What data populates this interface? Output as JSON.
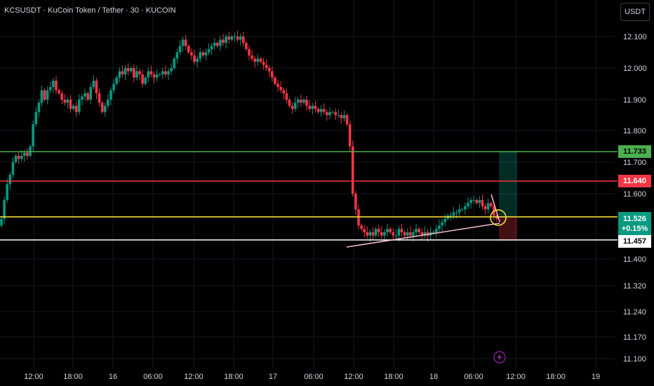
{
  "header": {
    "title": "KCSUSDT · KuCoin Token / Tether · 30 · KUCOIN",
    "currency_button": "USDT"
  },
  "colors": {
    "background": "#000000",
    "up": "#089981",
    "down": "#f23645",
    "resistance": "#4caf50",
    "stop": "#f23645",
    "entry": "#ffeb3b",
    "support": "#ffffff",
    "trendline": "#f8bbd0",
    "text": "#d1d4dc"
  },
  "chart_data": {
    "type": "candlestick",
    "symbol": "KCSUSDT",
    "interval": "30",
    "y_axis": {
      "ticks": [
        12.1,
        12.0,
        11.9,
        11.8,
        11.7,
        11.6,
        11.4,
        11.32,
        11.24,
        11.17,
        11.1
      ],
      "tick_labels": [
        "12.100",
        "12.000",
        "11.900",
        "11.800",
        "11.700",
        "11.600",
        "11.400",
        "11.320",
        "11.240",
        "11.170",
        "11.100"
      ],
      "scale": "non-uniform"
    },
    "x_axis": {
      "tick_labels": [
        "12:00",
        "18:00",
        "16",
        "06:00",
        "12:00",
        "18:00",
        "17",
        "06:00",
        "12:00",
        "18:00",
        "18",
        "06:00",
        "12:00",
        "18:00",
        "19"
      ]
    },
    "horizontal_lines": [
      {
        "price": 11.733,
        "label": "11.733",
        "color": "#4caf50"
      },
      {
        "price": 11.64,
        "label": "11.640",
        "color": "#f23645"
      },
      {
        "price": 11.526,
        "label": "11.526",
        "color": "#ffeb3b"
      },
      {
        "price": 11.457,
        "label": "11.457",
        "color": "#ffffff"
      }
    ],
    "current_price": {
      "price": "11.526",
      "change": "+0.15%"
    },
    "closes": [
      11.52,
      11.58,
      11.63,
      11.66,
      11.7,
      11.72,
      11.71,
      11.72,
      11.73,
      11.72,
      11.75,
      11.82,
      11.86,
      11.89,
      11.93,
      11.9,
      11.93,
      11.94,
      11.96,
      11.93,
      11.92,
      11.9,
      11.89,
      11.9,
      11.87,
      11.88,
      11.86,
      11.9,
      11.91,
      11.92,
      11.9,
      11.94,
      11.96,
      11.92,
      11.89,
      11.86,
      11.88,
      11.9,
      11.93,
      11.95,
      11.97,
      11.99,
      11.98,
      12.0,
      11.99,
      12.0,
      11.97,
      11.99,
      11.98,
      11.95,
      11.97,
      11.99,
      11.98,
      11.97,
      11.98,
      11.98,
      11.99,
      11.98,
      11.99,
      12.0,
      12.03,
      12.05,
      12.07,
      12.09,
      12.07,
      12.05,
      12.04,
      12.02,
      12.03,
      12.05,
      12.04,
      12.05,
      12.06,
      12.07,
      12.08,
      12.07,
      12.09,
      12.08,
      12.1,
      12.09,
      12.1,
      12.1,
      12.09,
      12.1,
      12.08,
      12.06,
      12.04,
      12.03,
      12.02,
      12.03,
      12.02,
      12.01,
      12.0,
      11.99,
      11.97,
      11.95,
      11.94,
      11.93,
      11.92,
      11.9,
      11.88,
      11.87,
      11.89,
      11.9,
      11.89,
      11.9,
      11.88,
      11.87,
      11.88,
      11.87,
      11.86,
      11.87,
      11.86,
      11.85,
      11.86,
      11.86,
      11.85,
      11.85,
      11.84,
      11.85,
      11.82,
      11.75,
      11.6,
      11.55,
      11.5,
      11.49,
      11.48,
      11.47,
      11.48,
      11.47,
      11.49,
      11.48,
      11.47,
      11.48,
      11.49,
      11.48,
      11.47,
      11.47,
      11.49,
      11.48,
      11.47,
      11.48,
      11.47,
      11.48,
      11.49,
      11.48,
      11.47,
      11.48,
      11.47,
      11.48,
      11.48,
      11.49,
      11.5,
      11.51,
      11.52,
      11.53,
      11.53,
      11.54,
      11.54,
      11.55,
      11.55,
      11.56,
      11.57,
      11.58,
      11.58,
      11.57,
      11.58,
      11.56,
      11.55,
      11.57,
      11.56,
      11.53,
      11.52
    ]
  },
  "lightning_icon": "lightning-icon"
}
